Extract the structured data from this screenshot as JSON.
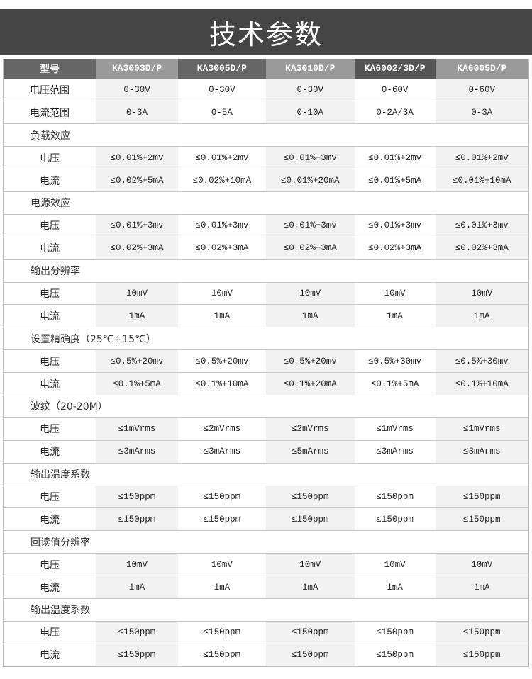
{
  "title": "技术参数",
  "header": [
    "型号",
    "KA3003D/P",
    "KA3005D/P",
    "KA3010D/P",
    "KA6002/3D/P",
    "KA6005D/P"
  ],
  "rows": [
    {
      "type": "row",
      "label": "电压范围",
      "values": [
        "0-30V",
        "0-30V",
        "0-30V",
        "0-60V",
        "0-60V"
      ]
    },
    {
      "type": "row",
      "label": "电流范围",
      "values": [
        "0-3A",
        "0-5A",
        "0-10A",
        "0-2A/3A",
        "0-3A"
      ]
    },
    {
      "type": "group",
      "label": "负载效应"
    },
    {
      "type": "row",
      "label": "电压",
      "values": [
        "≤0.01%+2mv",
        "≤0.01%+2mv",
        "≤0.01%+3mv",
        "≤0.01%+2mv",
        "≤0.01%+2mv"
      ]
    },
    {
      "type": "row",
      "label": "电流",
      "values": [
        "≤0.02%+5mA",
        "≤0.02%+10mA",
        "≤0.01%+20mA",
        "≤0.01%+5mA",
        "≤0.01%+10mA"
      ]
    },
    {
      "type": "group",
      "label": "电源效应"
    },
    {
      "type": "row",
      "label": "电压",
      "values": [
        "≤0.01%+3mv",
        "≤0.01%+3mv",
        "≤0.01%+3mv",
        "≤0.01%+3mv",
        "≤0.01%+3mv"
      ]
    },
    {
      "type": "row",
      "label": "电流",
      "values": [
        "≤0.02%+3mA",
        "≤0.02%+3mA",
        "≤0.02%+3mA",
        "≤0.02%+3mA",
        "≤0.02%+3mA"
      ]
    },
    {
      "type": "group",
      "label": "输出分辨率"
    },
    {
      "type": "row",
      "label": "电压",
      "values": [
        "10mV",
        "10mV",
        "10mV",
        "10mV",
        "10mV"
      ]
    },
    {
      "type": "row",
      "label": "电流",
      "values": [
        "1mA",
        "1mA",
        "1mA",
        "1mA",
        "1mA"
      ]
    },
    {
      "type": "group",
      "label": "设置精确度（25℃+15℃）"
    },
    {
      "type": "row",
      "label": "电压",
      "values": [
        "≤0.5%+20mv",
        "≤0.5%+20mv",
        "≤0.5%+20mv",
        "≤0.5%+30mv",
        "≤0.5%+30mv"
      ]
    },
    {
      "type": "row",
      "label": "电流",
      "values": [
        "≤0.1%+5mA",
        "≤0.1%+10mA",
        "≤0.1%+20mA",
        "≤0.1%+5mA",
        "≤0.1%+10mA"
      ]
    },
    {
      "type": "group",
      "label": "波纹（20-20M）"
    },
    {
      "type": "row",
      "label": "电压",
      "values": [
        "≤1mVrms",
        "≤2mVrms",
        "≤2mVrms",
        "≤1mVrms",
        "≤1mVrms"
      ]
    },
    {
      "type": "row",
      "label": "电流",
      "values": [
        "≤3mArms",
        "≤3mArms",
        "≤5mArms",
        "≤3mArms",
        "≤3mArms"
      ]
    },
    {
      "type": "group",
      "label": "输出温度系数"
    },
    {
      "type": "row",
      "label": "电压",
      "values": [
        "≤150ppm",
        "≤150ppm",
        "≤150ppm",
        "≤150ppm",
        "≤150ppm"
      ]
    },
    {
      "type": "row",
      "label": "电流",
      "values": [
        "≤150ppm",
        "≤150ppm",
        "≤150ppm",
        "≤150ppm",
        "≤150ppm"
      ]
    },
    {
      "type": "group",
      "label": "回读值分辨率"
    },
    {
      "type": "row",
      "label": "电压",
      "values": [
        "10mV",
        "10mV",
        "10mV",
        "10mV",
        "10mV"
      ]
    },
    {
      "type": "row",
      "label": "电流",
      "values": [
        "1mA",
        "1mA",
        "1mA",
        "1mA",
        "1mA"
      ]
    },
    {
      "type": "group",
      "label": "输出温度系数"
    },
    {
      "type": "row",
      "label": "电压",
      "values": [
        "≤150ppm",
        "≤150ppm",
        "≤150ppm",
        "≤150ppm",
        "≤150ppm"
      ]
    },
    {
      "type": "row",
      "label": "电流",
      "values": [
        "≤150ppm",
        "≤150ppm",
        "≤150ppm",
        "≤150ppm",
        "≤150ppm"
      ]
    }
  ]
}
